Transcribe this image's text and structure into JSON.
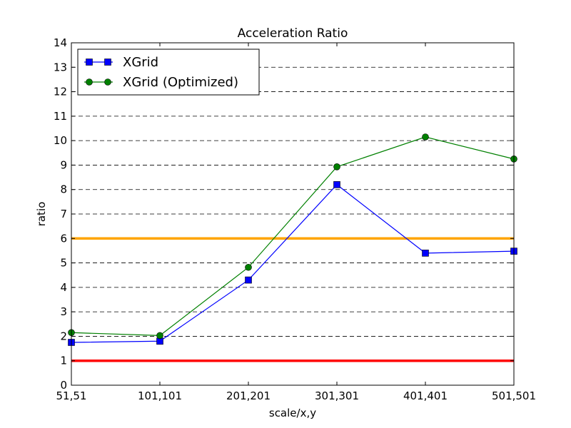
{
  "chart_data": {
    "type": "line",
    "title": "Acceleration Ratio",
    "xlabel": "scale/x,y",
    "ylabel": "ratio",
    "categories": [
      "51,51",
      "101,101",
      "201,201",
      "301,301",
      "401,401",
      "501,501"
    ],
    "ylim": [
      0,
      14
    ],
    "yticks": [
      0,
      1,
      2,
      3,
      4,
      5,
      6,
      7,
      8,
      9,
      10,
      11,
      12,
      13,
      14
    ],
    "grid": "horizontal-dashed",
    "legend_position": "top-left",
    "series": [
      {
        "name": "XGrid",
        "color": "#0000ff",
        "marker": "square",
        "values": [
          1.75,
          1.8,
          4.3,
          8.2,
          5.4,
          5.48
        ]
      },
      {
        "name": "XGrid (Optimized)",
        "color": "#008000",
        "marker": "circle",
        "values": [
          2.15,
          2.03,
          4.82,
          8.93,
          10.15,
          9.25
        ]
      }
    ],
    "reference_lines": [
      {
        "value": 6,
        "color": "#ffa500"
      },
      {
        "value": 1,
        "color": "#ff0000"
      }
    ]
  }
}
